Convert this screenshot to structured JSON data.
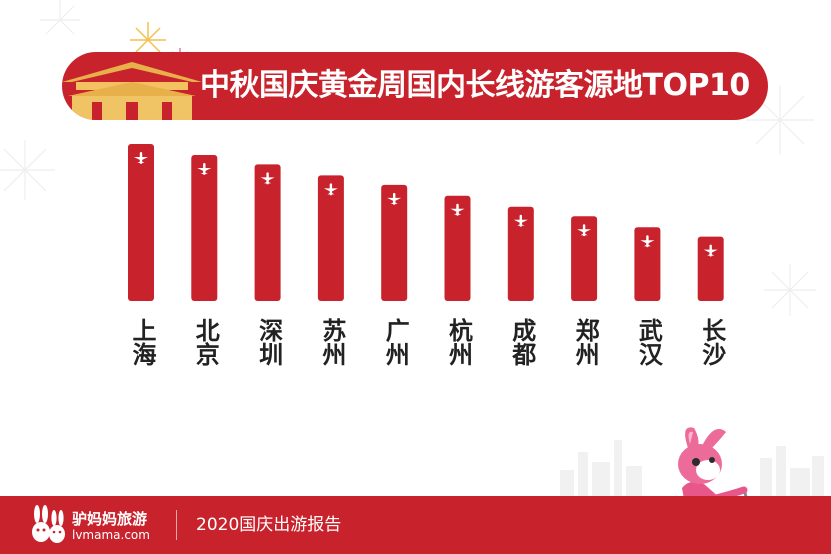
{
  "title": "中秋国庆黄金周国内长线游客源地TOP10",
  "chart_data": {
    "type": "bar",
    "title": "中秋国庆黄金周国内长线游客源地TOP10",
    "categories": [
      "上海",
      "北京",
      "深圳",
      "苏州",
      "广州",
      "杭州",
      "成都",
      "郑州",
      "武汉",
      "长沙"
    ],
    "values": [
      10,
      9.3,
      8.7,
      8.0,
      7.4,
      6.7,
      6.0,
      5.4,
      4.7,
      4.1
    ],
    "bar_icon": "airplane-icon",
    "grid": false,
    "legend": "none"
  },
  "footer": {
    "logo_name": "驴妈妈旅游",
    "logo_url": "lvmama.com",
    "report": "2020国庆出游报告"
  },
  "colors": {
    "bar": "#c8232c",
    "banner": "#c8232c",
    "footer": "#c8232c",
    "mascot": "#e8578a"
  }
}
